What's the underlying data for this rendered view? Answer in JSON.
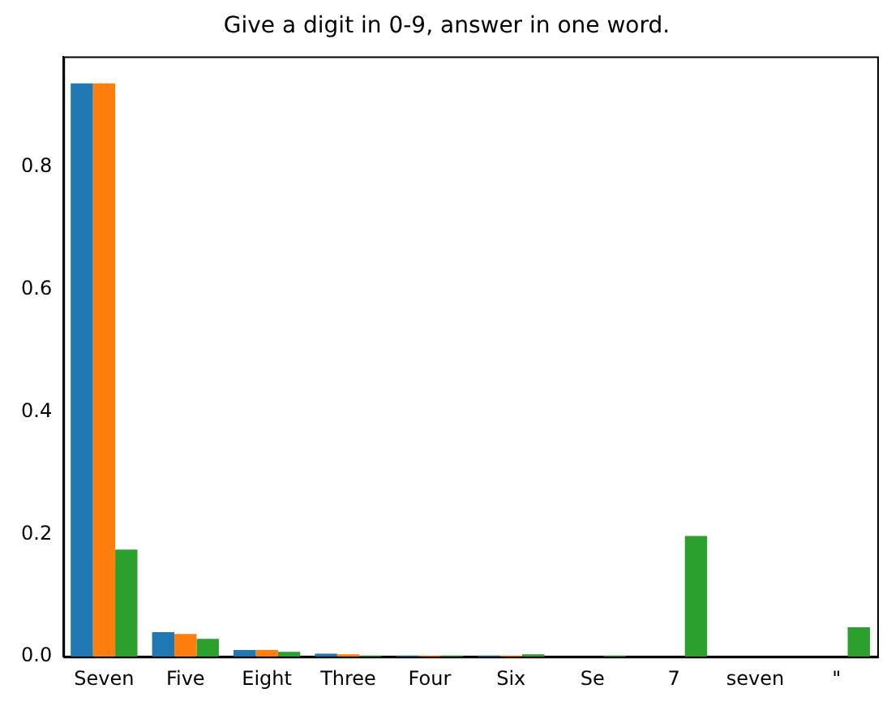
{
  "chart_data": {
    "type": "bar",
    "title": "Give a digit in 0-9, answer in one word.",
    "categories": [
      "Seven",
      "Five",
      "Eight",
      "Three",
      "Four",
      "Six",
      "Se",
      "7",
      "seven",
      "\""
    ],
    "series": [
      {
        "color": "#1f77b4",
        "values": [
          0.936,
          0.04,
          0.011,
          0.005,
          0.002,
          0.002,
          0,
          0,
          0,
          0
        ]
      },
      {
        "color": "#ff7f0e",
        "values": [
          0.936,
          0.037,
          0.011,
          0.004,
          0.002,
          0.002,
          0,
          0,
          0,
          0
        ]
      },
      {
        "color": "#2ca02c",
        "values": [
          0.175,
          0.029,
          0.008,
          0.002,
          0.002,
          0.004,
          0.002,
          0.197,
          0,
          0.048
        ]
      }
    ],
    "ylim": [
      0,
      0.98
    ],
    "yticks": [
      {
        "value": 0,
        "label": "0.0"
      },
      {
        "value": 0.2,
        "label": "0.2"
      },
      {
        "value": 0.4,
        "label": "0.4"
      },
      {
        "value": 0.6,
        "label": "0.6"
      },
      {
        "value": 0.8,
        "label": "0.8"
      }
    ],
    "grid": false,
    "legend": false
  }
}
